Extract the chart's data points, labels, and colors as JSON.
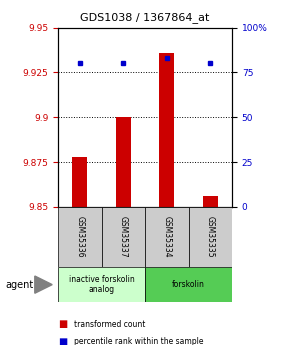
{
  "title": "GDS1038 / 1367864_at",
  "samples": [
    "GSM35336",
    "GSM35337",
    "GSM35334",
    "GSM35335"
  ],
  "bar_values": [
    9.878,
    9.9,
    9.936,
    9.856
  ],
  "bar_base": 9.85,
  "percentile_values": [
    80,
    80,
    83,
    80
  ],
  "ylim_left": [
    9.85,
    9.95
  ],
  "ylim_right": [
    0,
    100
  ],
  "yticks_left": [
    9.85,
    9.875,
    9.9,
    9.925,
    9.95
  ],
  "yticks_right": [
    0,
    25,
    50,
    75,
    100
  ],
  "ytick_labels_right": [
    "0",
    "25",
    "50",
    "75",
    "100%"
  ],
  "bar_color": "#CC0000",
  "percentile_color": "#0000CC",
  "agent_labels": [
    "inactive forskolin\nanalog",
    "forskolin"
  ],
  "agent_colors": [
    "#CCFFCC",
    "#55CC55"
  ],
  "sample_bg_color": "#CCCCCC",
  "legend_bar_label": "transformed count",
  "legend_pct_label": "percentile rank within the sample",
  "bar_width": 0.35
}
